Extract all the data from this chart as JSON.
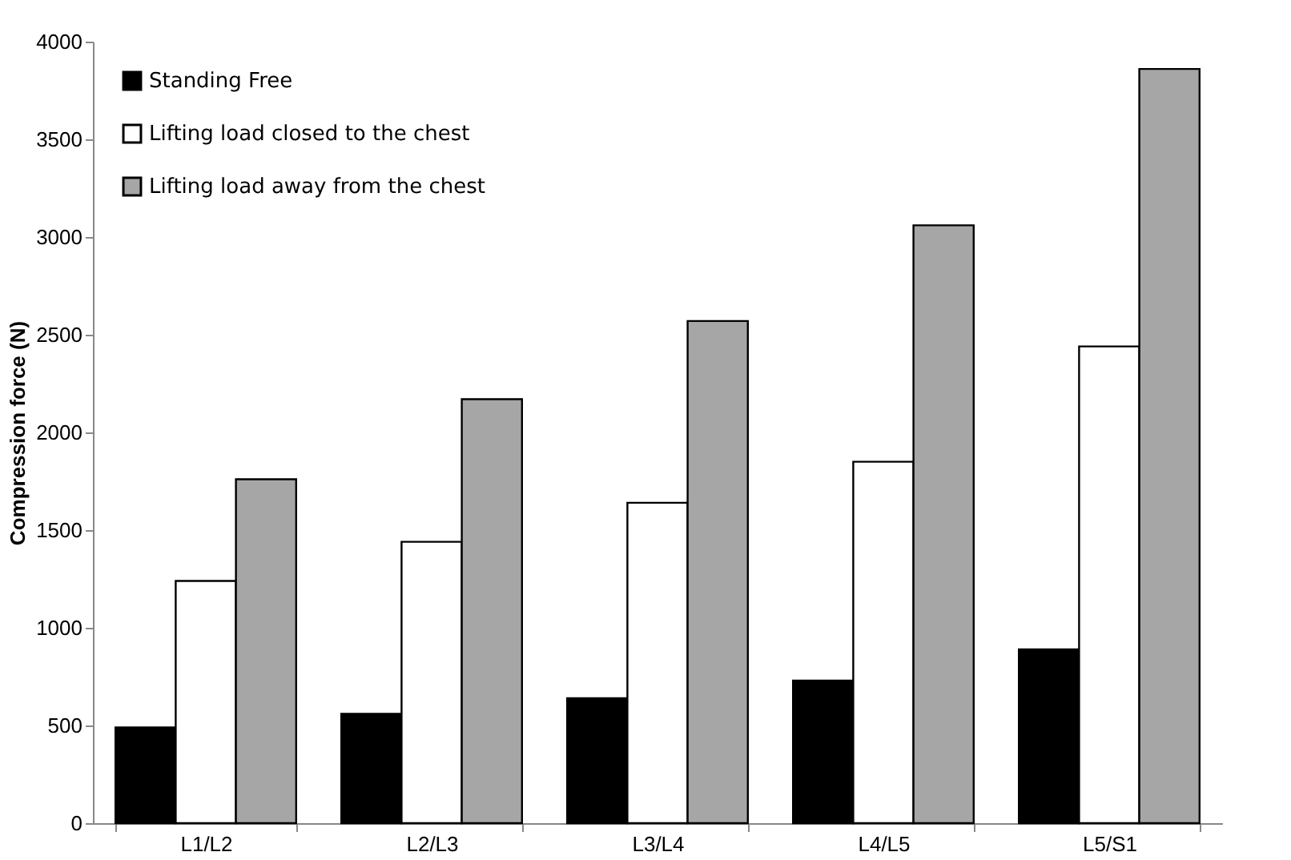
{
  "chart_data": {
    "type": "bar",
    "ylabel": "Compression force (N)",
    "categories": [
      "L1/L2",
      "L2/L3",
      "L3/L4",
      "L4/L5",
      "L5/S1"
    ],
    "series": [
      {
        "name": "Standing Free",
        "color": "#000000",
        "values": [
          490,
          560,
          640,
          730,
          890
        ]
      },
      {
        "name": "Lifting load closed to the chest",
        "color": "#ffffff",
        "values": [
          1240,
          1440,
          1640,
          1850,
          2440
        ]
      },
      {
        "name": "Lifting load away from the chest",
        "color": "#a6a6a6",
        "values": [
          1760,
          2170,
          2570,
          3060,
          3860
        ]
      }
    ],
    "ylim": [
      0,
      4000
    ],
    "yticks": [
      0,
      500,
      1000,
      1500,
      2000,
      2500,
      3000,
      3500,
      4000
    ],
    "grid": false,
    "legend": "top left"
  }
}
